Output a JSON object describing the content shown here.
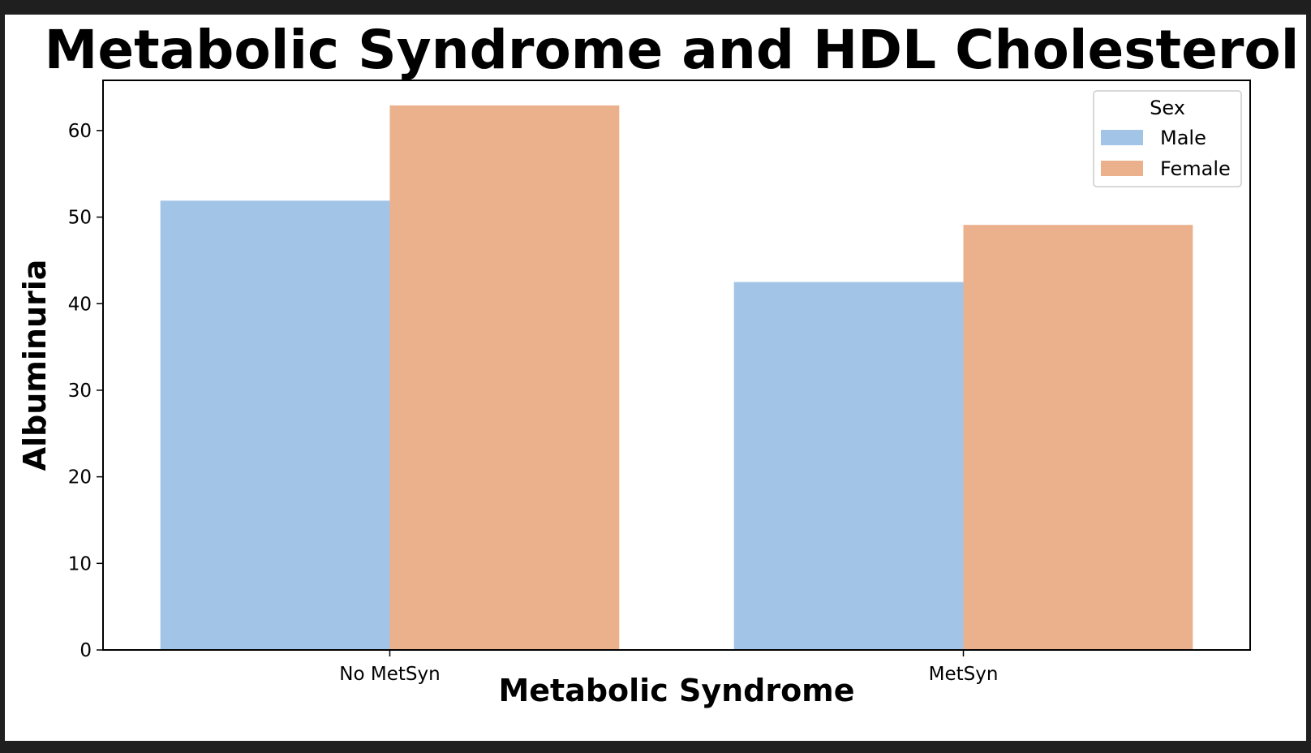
{
  "chart_data": {
    "type": "bar",
    "title": "Metabolic Syndrome and HDL Cholesterol",
    "xlabel": "Metabolic Syndrome",
    "ylabel": "Albuminuria",
    "categories": [
      "No MetSyn",
      "MetSyn"
    ],
    "series": [
      {
        "name": "Male",
        "color": "#a1c4e7",
        "values": [
          51.9,
          42.5
        ]
      },
      {
        "name": "Female",
        "color": "#ebb08c",
        "values": [
          62.9,
          49.1
        ]
      }
    ],
    "ylim": [
      0,
      65.8
    ],
    "yticks": [
      0,
      10,
      20,
      30,
      40,
      50,
      60
    ],
    "legend": {
      "title": "Sex",
      "placement": "top-right"
    },
    "grid": false
  }
}
